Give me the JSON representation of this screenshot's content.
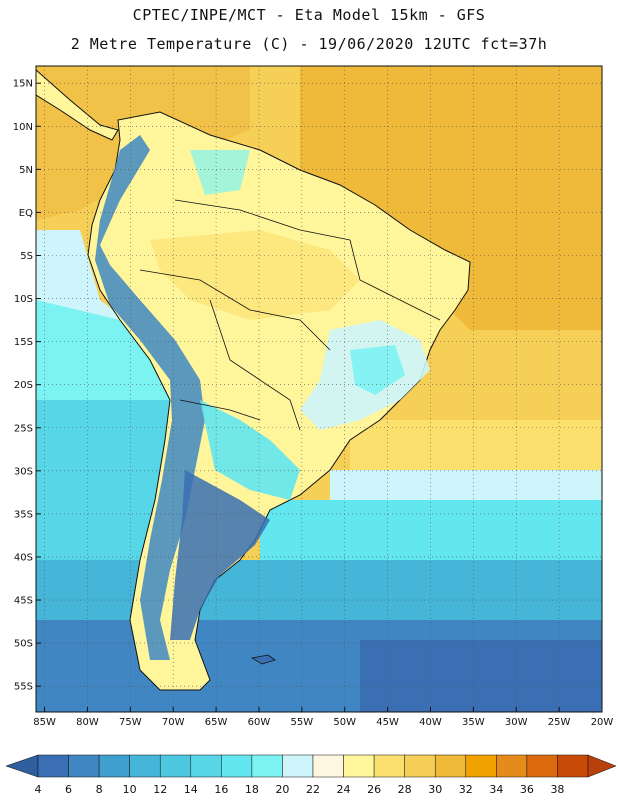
{
  "header": {
    "line1": "CPTEC/INPE/MCT -  Eta Model 15km - GFS",
    "line2": "2 Metre Temperature (C) - 19/06/2020 12UTC fct=37h"
  },
  "map": {
    "region": "South America",
    "lat_range": [
      -58,
      17
    ],
    "lon_range": [
      -86,
      -20
    ],
    "lat_ticks": [
      {
        "value": 15,
        "label": "15N"
      },
      {
        "value": 10,
        "label": "10N"
      },
      {
        "value": 5,
        "label": "5N"
      },
      {
        "value": 0,
        "label": "EQ"
      },
      {
        "value": -5,
        "label": "5S"
      },
      {
        "value": -10,
        "label": "10S"
      },
      {
        "value": -15,
        "label": "15S"
      },
      {
        "value": -20,
        "label": "20S"
      },
      {
        "value": -25,
        "label": "25S"
      },
      {
        "value": -30,
        "label": "30S"
      },
      {
        "value": -35,
        "label": "35S"
      },
      {
        "value": -40,
        "label": "40S"
      },
      {
        "value": -45,
        "label": "45S"
      },
      {
        "value": -50,
        "label": "50S"
      },
      {
        "value": -55,
        "label": "55S"
      }
    ],
    "lon_ticks": [
      {
        "value": -85,
        "label": "85W"
      },
      {
        "value": -80,
        "label": "80W"
      },
      {
        "value": -75,
        "label": "75W"
      },
      {
        "value": -70,
        "label": "70W"
      },
      {
        "value": -65,
        "label": "65W"
      },
      {
        "value": -60,
        "label": "60W"
      },
      {
        "value": -55,
        "label": "55W"
      },
      {
        "value": -50,
        "label": "50W"
      },
      {
        "value": -45,
        "label": "45W"
      },
      {
        "value": -40,
        "label": "40W"
      },
      {
        "value": -35,
        "label": "35W"
      },
      {
        "value": -30,
        "label": "30W"
      },
      {
        "value": -25,
        "label": "25W"
      },
      {
        "value": -20,
        "label": "20W"
      }
    ]
  },
  "colorbar": {
    "levels": [
      {
        "label": "4",
        "color": "#3a6fb3"
      },
      {
        "label": "6",
        "color": "#3f86c2"
      },
      {
        "label": "8",
        "color": "#3fa0cf"
      },
      {
        "label": "10",
        "color": "#45b5d8"
      },
      {
        "label": "12",
        "color": "#4ec7e0"
      },
      {
        "label": "14",
        "color": "#57d6e8"
      },
      {
        "label": "16",
        "color": "#62e6f0"
      },
      {
        "label": "18",
        "color": "#7cf3f3"
      },
      {
        "label": "20",
        "color": "#cdf5fb"
      },
      {
        "label": "22",
        "color": "#fff6df"
      },
      {
        "label": "24",
        "color": "#fff59a"
      },
      {
        "label": "26",
        "color": "#fbe06e"
      },
      {
        "label": "28",
        "color": "#f6cf56"
      },
      {
        "label": "30",
        "color": "#efb93a"
      },
      {
        "label": "32",
        "color": "#f0a300"
      },
      {
        "label": "34",
        "color": "#e48b1c"
      },
      {
        "label": "36",
        "color": "#db6a0c"
      },
      {
        "label": "38",
        "color": "#c84a07"
      }
    ],
    "low_color": "#2f5f9e",
    "high_color": "#b8400a"
  }
}
